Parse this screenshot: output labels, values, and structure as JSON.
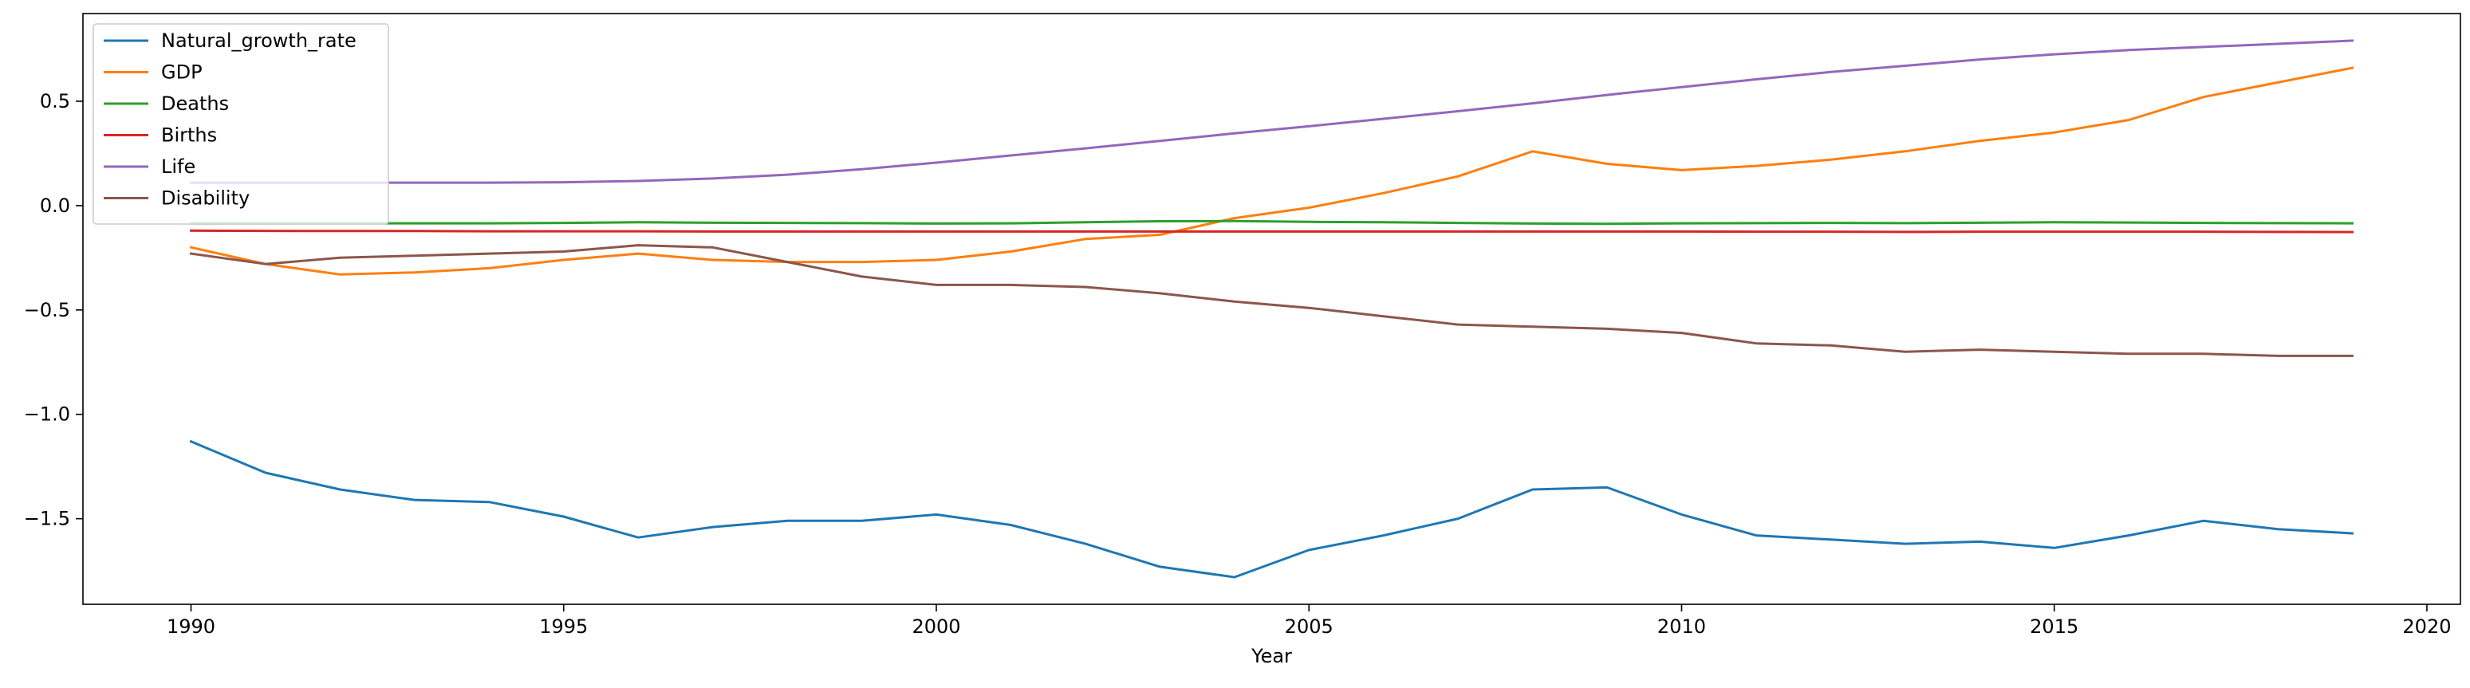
{
  "chart_data": {
    "type": "line",
    "title": "",
    "xlabel": "Year",
    "ylabel": "",
    "xlim": [
      1988.55,
      2020.45
    ],
    "ylim": [
      -1.91,
      0.92
    ],
    "xticks": [
      1990,
      1995,
      2000,
      2005,
      2010,
      2015,
      2020
    ],
    "yticks": [
      -1.5,
      -1.0,
      -0.5,
      0.0,
      0.5
    ],
    "ytick_labels": [
      "−1.5",
      "−1.0",
      "−0.5",
      "0.0",
      "0.5"
    ],
    "grid": false,
    "legend_position": "upper-left",
    "x": [
      1990,
      1991,
      1992,
      1993,
      1994,
      1995,
      1996,
      1997,
      1998,
      1999,
      2000,
      2001,
      2002,
      2003,
      2004,
      2005,
      2006,
      2007,
      2008,
      2009,
      2010,
      2011,
      2012,
      2013,
      2014,
      2015,
      2016,
      2017,
      2018,
      2019
    ],
    "series": [
      {
        "name": "Natural_growth_rate",
        "color": "#1f77b4",
        "values": [
          -1.13,
          -1.28,
          -1.36,
          -1.41,
          -1.42,
          -1.49,
          -1.59,
          -1.54,
          -1.51,
          -1.51,
          -1.48,
          -1.53,
          -1.62,
          -1.73,
          -1.78,
          -1.65,
          -1.58,
          -1.5,
          -1.36,
          -1.35,
          -1.48,
          -1.58,
          -1.6,
          -1.62,
          -1.61,
          -1.64,
          -1.58,
          -1.51,
          -1.55,
          -1.57
        ]
      },
      {
        "name": "GDP",
        "color": "#ff7f0e",
        "values": [
          -0.2,
          -0.28,
          -0.33,
          -0.32,
          -0.3,
          -0.26,
          -0.23,
          -0.26,
          -0.27,
          -0.27,
          -0.26,
          -0.22,
          -0.16,
          -0.14,
          -0.06,
          -0.01,
          0.06,
          0.14,
          0.26,
          0.2,
          0.17,
          0.19,
          0.22,
          0.26,
          0.31,
          0.35,
          0.41,
          0.52,
          0.59,
          0.66
        ]
      },
      {
        "name": "Deaths",
        "color": "#2ca02c",
        "values": [
          -0.085,
          -0.085,
          -0.085,
          -0.085,
          -0.085,
          -0.083,
          -0.08,
          -0.082,
          -0.083,
          -0.084,
          -0.086,
          -0.085,
          -0.08,
          -0.075,
          -0.074,
          -0.078,
          -0.08,
          -0.083,
          -0.086,
          -0.087,
          -0.085,
          -0.084,
          -0.083,
          -0.084,
          -0.082,
          -0.08,
          -0.081,
          -0.083,
          -0.084,
          -0.085
        ]
      },
      {
        "name": "Births",
        "color": "#d62728",
        "values": [
          -0.12,
          -0.121,
          -0.122,
          -0.122,
          -0.123,
          -0.123,
          -0.123,
          -0.124,
          -0.124,
          -0.124,
          -0.124,
          -0.124,
          -0.124,
          -0.124,
          -0.124,
          -0.124,
          -0.124,
          -0.124,
          -0.124,
          -0.124,
          -0.124,
          -0.125,
          -0.125,
          -0.126,
          -0.125,
          -0.125,
          -0.125,
          -0.125,
          -0.126,
          -0.127
        ]
      },
      {
        "name": "Life",
        "color": "#9467bd",
        "values": [
          0.11,
          0.11,
          0.11,
          0.11,
          0.11,
          0.112,
          0.118,
          0.13,
          0.148,
          0.174,
          0.206,
          0.24,
          0.274,
          0.31,
          0.346,
          0.38,
          0.416,
          0.452,
          0.49,
          0.53,
          0.568,
          0.605,
          0.64,
          0.67,
          0.7,
          0.725,
          0.745,
          0.76,
          0.775,
          0.79
        ]
      },
      {
        "name": "Disability",
        "color": "#8c564b",
        "values": [
          -0.23,
          -0.28,
          -0.25,
          -0.24,
          -0.23,
          -0.22,
          -0.19,
          -0.2,
          -0.27,
          -0.34,
          -0.38,
          -0.38,
          -0.39,
          -0.42,
          -0.46,
          -0.49,
          -0.53,
          -0.57,
          -0.58,
          -0.59,
          -0.61,
          -0.66,
          -0.67,
          -0.7,
          -0.69,
          -0.7,
          -0.71,
          -0.71,
          -0.72,
          -0.72
        ]
      }
    ]
  }
}
